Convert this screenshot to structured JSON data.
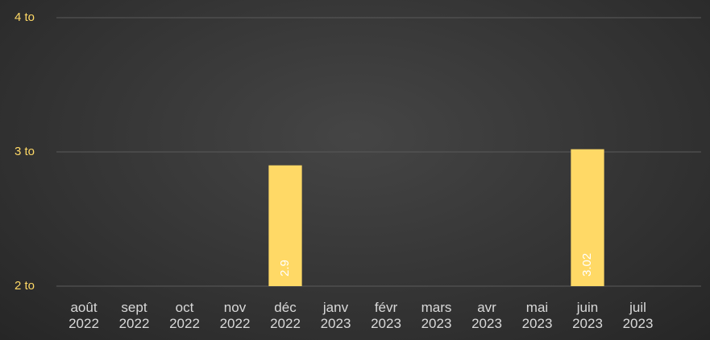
{
  "chart_data": {
    "type": "bar",
    "categories": [
      "août 2022",
      "sept 2022",
      "oct 2022",
      "nov 2022",
      "déc 2022",
      "janv 2023",
      "févr 2023",
      "mars 2023",
      "avr 2023",
      "mai 2023",
      "juin 2023",
      "juil 2023"
    ],
    "values": [
      null,
      null,
      null,
      null,
      2.9,
      null,
      null,
      null,
      null,
      null,
      3.02,
      null
    ],
    "color": "#ffd966",
    "ylim": [
      2,
      4
    ],
    "yticks": [
      {
        "value": 2,
        "label": "2 to"
      },
      {
        "value": 3,
        "label": "3 to"
      },
      {
        "value": 4,
        "label": "4 to"
      }
    ],
    "grid": true
  }
}
